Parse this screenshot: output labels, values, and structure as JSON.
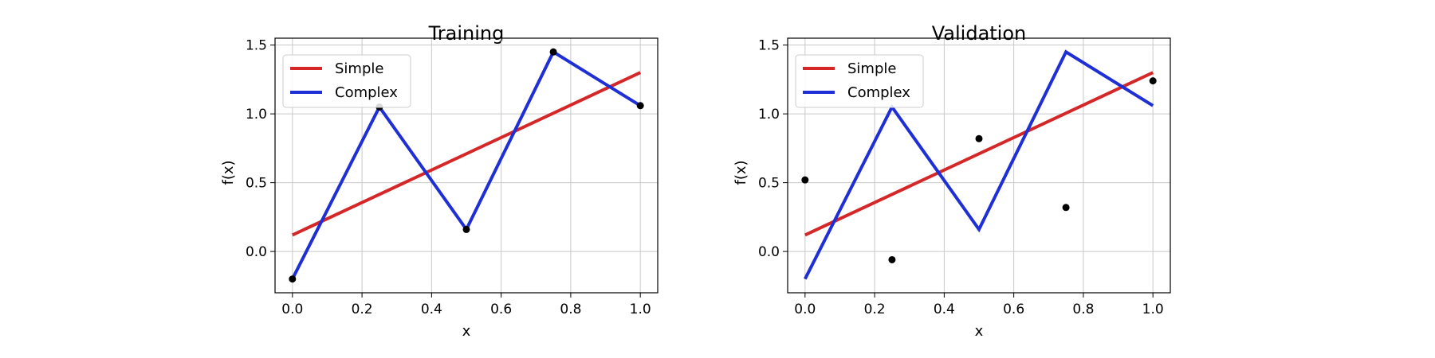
{
  "chart_data": [
    {
      "type": "line",
      "title": "Training",
      "xlabel": "x",
      "ylabel": "f(x)",
      "xlim": [
        -0.05,
        1.05
      ],
      "ylim": [
        -0.3,
        1.55
      ],
      "xticks": [
        0.0,
        0.2,
        0.4,
        0.6,
        0.8,
        1.0
      ],
      "xtick_labels": [
        "0.0",
        "0.2",
        "0.4",
        "0.6",
        "0.8",
        "1.0"
      ],
      "yticks": [
        0.0,
        0.5,
        1.0,
        1.5
      ],
      "ytick_labels": [
        "0.0",
        "0.5",
        "1.0",
        "1.5"
      ],
      "grid": true,
      "legend_position": "top-left",
      "series": [
        {
          "name": "Simple",
          "color": "#d62728",
          "x": [
            0.0,
            1.0
          ],
          "y": [
            0.12,
            1.3
          ]
        },
        {
          "name": "Complex",
          "color": "#1f2fd6",
          "x": [
            0.0,
            0.25,
            0.5,
            0.75,
            1.0
          ],
          "y": [
            -0.2,
            1.05,
            0.16,
            1.45,
            1.06
          ]
        }
      ],
      "points": {
        "color": "#000000",
        "x": [
          0.0,
          0.25,
          0.5,
          0.75,
          1.0
        ],
        "y": [
          -0.2,
          1.05,
          0.16,
          1.45,
          1.06
        ]
      }
    },
    {
      "type": "line",
      "title": "Validation",
      "xlabel": "x",
      "ylabel": "f(x)",
      "xlim": [
        -0.05,
        1.05
      ],
      "ylim": [
        -0.3,
        1.55
      ],
      "xticks": [
        0.0,
        0.2,
        0.4,
        0.6,
        0.8,
        1.0
      ],
      "xtick_labels": [
        "0.0",
        "0.2",
        "0.4",
        "0.6",
        "0.8",
        "1.0"
      ],
      "yticks": [
        0.0,
        0.5,
        1.0,
        1.5
      ],
      "ytick_labels": [
        "0.0",
        "0.5",
        "1.0",
        "1.5"
      ],
      "grid": true,
      "legend_position": "top-left",
      "series": [
        {
          "name": "Simple",
          "color": "#d62728",
          "x": [
            0.0,
            1.0
          ],
          "y": [
            0.12,
            1.3
          ]
        },
        {
          "name": "Complex",
          "color": "#1f2fd6",
          "x": [
            0.0,
            0.25,
            0.5,
            0.75,
            1.0
          ],
          "y": [
            -0.2,
            1.05,
            0.16,
            1.45,
            1.06
          ]
        }
      ],
      "points": {
        "color": "#000000",
        "x": [
          0.0,
          0.25,
          0.5,
          0.75,
          1.0
        ],
        "y": [
          0.52,
          -0.06,
          0.82,
          0.32,
          1.24
        ]
      }
    }
  ]
}
